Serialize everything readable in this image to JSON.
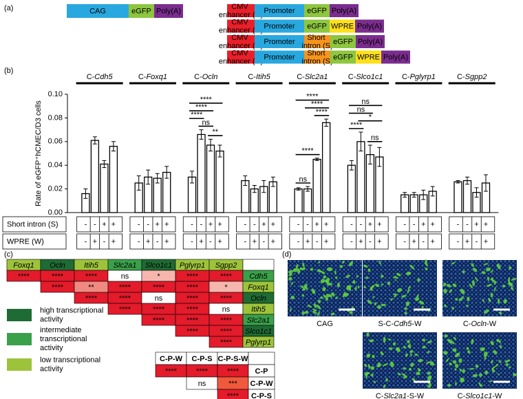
{
  "panel_labels": [
    "(a)",
    "(b)",
    "(c)",
    "(d)"
  ],
  "constructs": {
    "parts": [
      {
        "label": "CAG",
        "color": "#29a8e0",
        "text_color": "#ffffff"
      },
      {
        "label": "eGFP",
        "color": "#8dc63f"
      },
      {
        "label": "Poly(A)",
        "color": "#7b2d8e"
      },
      {
        "label": "CMV enhancer (C)",
        "color": "#e8202a",
        "text_color": "#ffffff",
        "small": true
      },
      {
        "label": "Promoter",
        "color": "#29a8e0"
      },
      {
        "label": "WPRE",
        "color": "#ffe01a"
      },
      {
        "label": "Short intron (S)",
        "color": "#f7941d",
        "small": true
      }
    ],
    "rows": [
      [
        0,
        1,
        2
      ],
      [
        3,
        4,
        1,
        2
      ],
      [
        3,
        4,
        1,
        5,
        2
      ],
      [
        3,
        4,
        6,
        1,
        2
      ],
      [
        3,
        4,
        6,
        1,
        5,
        2
      ]
    ]
  },
  "chart_data": {
    "type": "bar",
    "y_label": "Rate of eGFP⁺hCMEC/D3 cells",
    "categories": [
      "C-Cdh5",
      "C-Foxq1",
      "C-Ocln",
      "C-Itih5",
      "C-Slc2a1",
      "C-Slco1c1",
      "C-Pglyrp1",
      "C-Sgpp2"
    ],
    "values": [
      [
        0.016,
        0.061,
        0.041,
        0.056
      ],
      [
        0.025,
        0.03,
        0.029,
        0.034
      ],
      [
        0.03,
        0.066,
        0.057,
        0.052
      ],
      [
        0.027,
        0.02,
        0.022,
        0.026
      ],
      [
        0.02,
        0.02,
        0.045,
        0.076
      ],
      [
        0.04,
        0.06,
        0.049,
        0.047
      ],
      [
        0.015,
        0.015,
        0.015,
        0.018
      ],
      [
        0.026,
        0.027,
        0.017,
        0.025
      ]
    ],
    "errors": [
      [
        0.004,
        0.003,
        0.003,
        0.004
      ],
      [
        0.006,
        0.006,
        0.004,
        0.005
      ],
      [
        0.005,
        0.004,
        0.005,
        0.005
      ],
      [
        0.004,
        0.003,
        0.005,
        0.004
      ],
      [
        0.001,
        0.002,
        0.001,
        0.003
      ],
      [
        0.004,
        0.008,
        0.008,
        0.008
      ],
      [
        0.002,
        0.002,
        0.004,
        0.004
      ],
      [
        0.001,
        0.003,
        0.004,
        0.007
      ]
    ],
    "color": "#ffffff",
    "ylim": [
      0,
      0.1
    ],
    "yticks": [
      {
        "value": 0,
        "label": "0.00"
      },
      0.02,
      0.04,
      0.06,
      0.08,
      {
        "value": 0.1,
        "label": "0.10"
      }
    ],
    "comparisons": [
      {
        "category": 2,
        "bars": [
          2,
          3
        ],
        "label": "**"
      },
      {
        "category": 2,
        "bars": [
          1,
          2
        ],
        "label": "ns"
      },
      {
        "category": 2,
        "bars": [
          0,
          1
        ],
        "label": "****"
      },
      {
        "category": 2,
        "bars": [
          0,
          2
        ],
        "label": "****"
      },
      {
        "category": 2,
        "bars": [
          0,
          3
        ],
        "label": "****"
      },
      {
        "category": 4,
        "bars": [
          0,
          1
        ],
        "label": "ns"
      },
      {
        "category": 4,
        "bars": [
          0,
          2
        ],
        "label": "****"
      },
      {
        "category": 4,
        "bars": [
          2,
          3
        ],
        "label": "****"
      },
      {
        "category": 4,
        "bars": [
          1,
          3
        ],
        "label": "****"
      },
      {
        "category": 4,
        "bars": [
          0,
          3
        ],
        "label": "****"
      },
      {
        "category": 5,
        "bars": [
          2,
          3
        ],
        "label": "ns"
      },
      {
        "category": 5,
        "bars": [
          0,
          1
        ],
        "label": "****"
      },
      {
        "category": 5,
        "bars": [
          1,
          3
        ],
        "label": "*"
      },
      {
        "category": 5,
        "bars": [
          0,
          2
        ],
        "label": "ns"
      },
      {
        "category": 5,
        "bars": [
          0,
          3
        ],
        "label": "ns"
      }
    ],
    "conditions": [
      {
        "label": "Short intron (S)",
        "marks": [
          "-",
          "-",
          "+",
          "+"
        ]
      },
      {
        "label": "WPRE (W)",
        "marks": [
          "-",
          "+",
          "-",
          "+"
        ]
      }
    ]
  },
  "significance_matrix": {
    "columns": [
      {
        "label": "Foxq1",
        "color": "#9dc33b"
      },
      {
        "label": "Ocln",
        "color": "#1e6b33"
      },
      {
        "label": "Itih5",
        "color": "#9dc33b"
      },
      {
        "label": "Slc2a1",
        "color": "#3aa04a"
      },
      {
        "label": "Slco1c1",
        "color": "#1e6b33"
      },
      {
        "label": "Pglyrp1",
        "color": "#9dc33b"
      },
      {
        "label": "Sgpp2",
        "color": "#9dc33b"
      }
    ],
    "rows": [
      {
        "label": "Cdh5",
        "color": "#3aa04a",
        "cells": [
          {
            "label": "****",
            "color": "#e31b2b",
            "text_color": "#ffffff"
          },
          {
            "label": "****",
            "color": "#e31b2b",
            "text_color": "#ffffff"
          },
          {
            "label": "****",
            "color": "#e31b2b",
            "text_color": "#ffffff"
          },
          {
            "label": "ns",
            "color": "#ffffff"
          },
          {
            "label": "*",
            "color": "#f6b6ae"
          },
          {
            "label": "****",
            "color": "#e31b2b",
            "text_color": "#ffffff"
          },
          {
            "label": "****",
            "color": "#e31b2b",
            "text_color": "#ffffff"
          }
        ]
      },
      {
        "label": "Foxq1",
        "color": "#9dc33b",
        "cells": [
          {
            "label": "****",
            "color": "#e31b2b",
            "text_color": "#ffffff"
          },
          {
            "label": "**",
            "color": "#f08a80"
          },
          {
            "label": "****",
            "color": "#e31b2b",
            "text_color": "#ffffff"
          },
          {
            "label": "****",
            "color": "#e31b2b",
            "text_color": "#ffffff"
          },
          {
            "label": "****",
            "color": "#e31b2b",
            "text_color": "#ffffff"
          },
          {
            "label": "*",
            "color": "#f6b6ae"
          }
        ]
      },
      {
        "label": "Ocln",
        "color": "#1e6b33",
        "cells": [
          {
            "label": "****",
            "color": "#e31b2b",
            "text_color": "#ffffff"
          },
          {
            "label": "****",
            "color": "#e31b2b",
            "text_color": "#ffffff"
          },
          {
            "label": "ns",
            "color": "#ffffff"
          },
          {
            "label": "****",
            "color": "#e31b2b",
            "text_color": "#ffffff"
          },
          {
            "label": "****",
            "color": "#e31b2b",
            "text_color": "#ffffff"
          }
        ]
      },
      {
        "label": "Itih5",
        "color": "#9dc33b",
        "cells": [
          {
            "label": "****",
            "color": "#e31b2b",
            "text_color": "#ffffff"
          },
          {
            "label": "****",
            "color": "#e31b2b",
            "text_color": "#ffffff"
          },
          {
            "label": "****",
            "color": "#e31b2b",
            "text_color": "#ffffff"
          },
          {
            "label": "ns",
            "color": "#ffffff"
          }
        ]
      },
      {
        "label": "Slc2a1",
        "color": "#3aa04a",
        "cells": [
          {
            "label": "****",
            "color": "#e31b2b",
            "text_color": "#ffffff"
          },
          {
            "label": "****",
            "color": "#e31b2b",
            "text_color": "#ffffff"
          },
          {
            "label": "****",
            "color": "#e31b2b",
            "text_color": "#ffffff"
          }
        ]
      },
      {
        "label": "Slco1c1",
        "color": "#1e6b33",
        "cells": [
          {
            "label": "****",
            "color": "#e31b2b",
            "text_color": "#ffffff"
          },
          {
            "label": "****",
            "color": "#e31b2b",
            "text_color": "#ffffff"
          }
        ]
      },
      {
        "label": "Pglyrp1",
        "color": "#9dc33b",
        "cells": [
          {
            "label": "****",
            "color": "#e31b2b",
            "text_color": "#ffffff"
          }
        ]
      }
    ]
  },
  "activity_legend": [
    {
      "label": "high transcriptional activity",
      "color": "#1e6b33"
    },
    {
      "label": "intermediate transcriptional activity",
      "color": "#3aa04a"
    },
    {
      "label": "low transcriptional activity",
      "color": "#9dc33b"
    }
  ],
  "construct_comparison": {
    "columns": [
      "C-P-W",
      "C-P-S",
      "C-P-S-W"
    ],
    "rows": [
      {
        "label": "C-P",
        "cells": [
          {
            "label": "****",
            "color": "#e31b2b",
            "text_color": "#ffffff"
          },
          {
            "label": "****",
            "color": "#e31b2b",
            "text_color": "#ffffff"
          },
          {
            "label": "****",
            "color": "#e31b2b",
            "text_color": "#ffffff"
          }
        ]
      },
      {
        "label": "C-P-W",
        "cells": [
          null,
          {
            "label": "ns",
            "color": "#ffffff"
          },
          {
            "label": "***",
            "color": "#f05a3c",
            "text_color": "#ffffff"
          }
        ]
      },
      {
        "label": "C-P-S",
        "cells": [
          null,
          null,
          {
            "label": "****",
            "color": "#e31b2b",
            "text_color": "#ffffff"
          }
        ]
      }
    ]
  },
  "images": [
    {
      "label": "CAG"
    },
    {
      "label": "S-C-Cdh5-W"
    },
    {
      "label": "C-Ocln-W"
    },
    {
      "label": "C-Slc2a1-S-W"
    },
    {
      "label": "C-Slco1c1-W"
    }
  ]
}
